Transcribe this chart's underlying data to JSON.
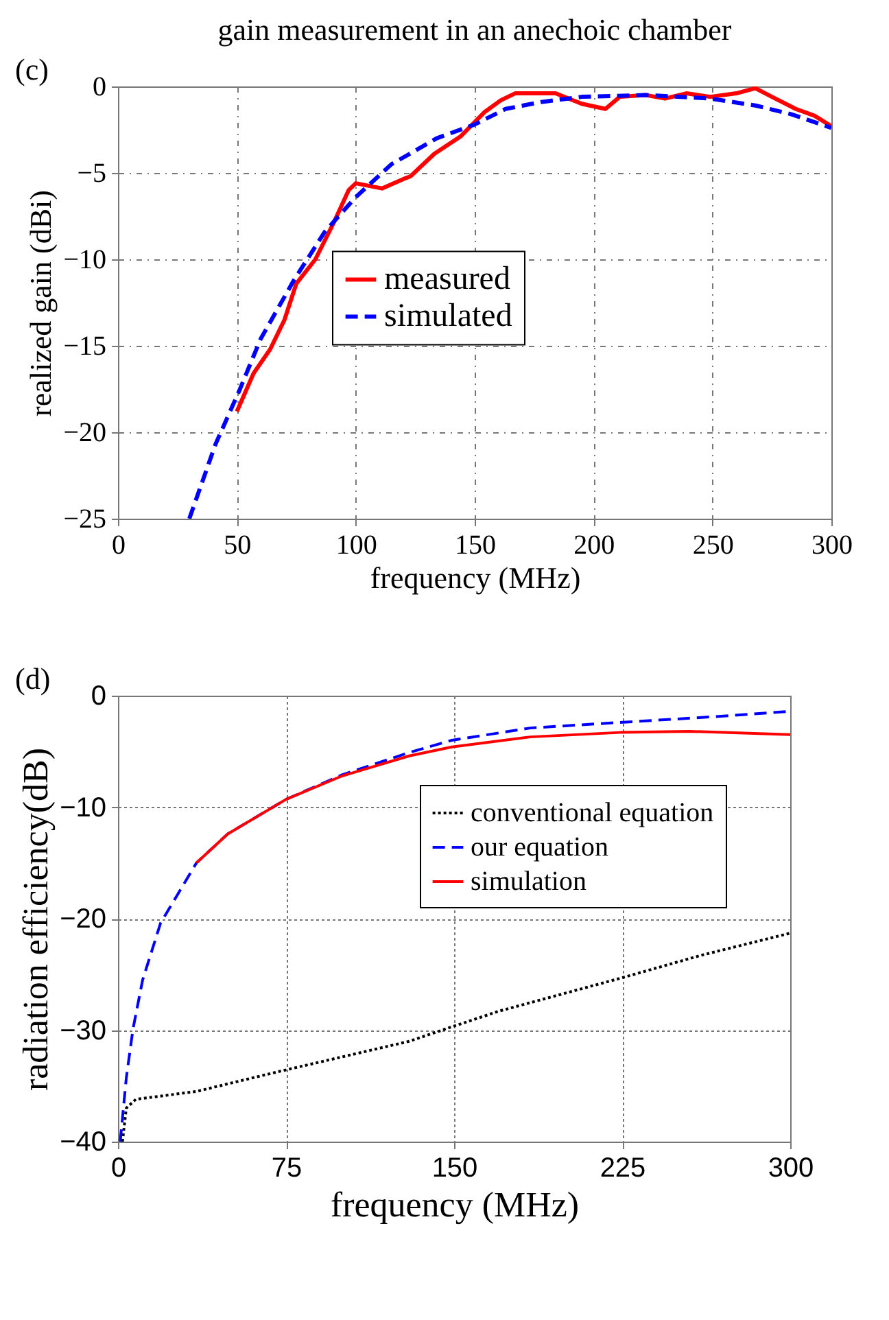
{
  "chart_data": [
    {
      "type": "line",
      "title": "gain measurement in an anechoic chamber",
      "xlabel": "frequency (MHz)",
      "ylabel": "realized gain (dBi)",
      "annotations": [
        "(c)"
      ],
      "xlim": [
        0,
        300
      ],
      "xticks": [
        0,
        50,
        100,
        150,
        200,
        250,
        300
      ],
      "ylim": [
        -25,
        0
      ],
      "yticks": [
        -25,
        -20,
        -15,
        -10,
        -5,
        0
      ],
      "grid": true,
      "legend": "center",
      "series": [
        {
          "name": "measured",
          "color": "#ff0000",
          "line_style": "solid",
          "x": [
            50,
            57,
            64,
            70,
            75,
            83,
            91,
            97,
            100,
            111,
            121,
            123,
            133,
            144,
            154,
            161,
            167,
            184,
            195,
            205,
            211,
            222,
            230,
            239,
            249,
            260,
            268,
            275,
            285,
            293,
            300
          ],
          "values": [
            -18.8,
            -16.6,
            -15.2,
            -13.5,
            -11.4,
            -10,
            -7.8,
            -6,
            -5.6,
            -5.9,
            -5.3,
            -5.2,
            -3.9,
            -2.9,
            -1.5,
            -0.8,
            -0.4,
            -0.4,
            -1,
            -1.3,
            -0.6,
            -0.5,
            -0.7,
            -0.4,
            -0.6,
            -0.4,
            -0.1,
            -0.6,
            -1.3,
            -1.7,
            -2.3
          ]
        },
        {
          "name": "simulated",
          "color": "#0000ff",
          "line_style": "dashed",
          "x": [
            30,
            41,
            51,
            60,
            74,
            87,
            100,
            115,
            134,
            150,
            163,
            178,
            195,
            222,
            249,
            268,
            283,
            300
          ],
          "values": [
            -25,
            -20.7,
            -17.6,
            -14.6,
            -11.2,
            -8.4,
            -6.4,
            -4.5,
            -3,
            -2.2,
            -1.3,
            -0.9,
            -0.6,
            -0.5,
            -0.7,
            -1.1,
            -1.6,
            -2.4
          ]
        }
      ]
    },
    {
      "type": "line",
      "xlabel": "frequency (MHz)",
      "ylabel": "radiation efficiency(dB)",
      "annotations": [
        "(d)"
      ],
      "xlim": [
        0,
        300
      ],
      "xticks": [
        0,
        75,
        150,
        225,
        300
      ],
      "ylim": [
        -40,
        0
      ],
      "yticks": [
        -40,
        -30,
        -20,
        -10,
        0
      ],
      "grid": true,
      "legend": "right",
      "series": [
        {
          "name": "conventional equation",
          "color": "#000000",
          "line_style": "dotted",
          "x": [
            2,
            3.7,
            8,
            35,
            70,
            100,
            130,
            149,
            170,
            225,
            260,
            300
          ],
          "values": [
            -40,
            -37,
            -36.2,
            -35.5,
            -33.8,
            -32.4,
            -31,
            -29.7,
            -28.3,
            -25.3,
            -23.3,
            -21.3
          ]
        },
        {
          "name": "our equation",
          "color": "#0000ff",
          "line_style": "dashed",
          "x": [
            1,
            3.7,
            6.7,
            11,
            19,
            35,
            49,
            75,
            100,
            130,
            149,
            184,
            224,
            265,
            300
          ],
          "values": [
            -40,
            -34.3,
            -29.9,
            -25.5,
            -20.4,
            -15,
            -12.4,
            -9.3,
            -7.1,
            -5.1,
            -4,
            -2.9,
            -2.4,
            -1.9,
            -1.4
          ]
        },
        {
          "name": "simulation",
          "color": "#ff0000",
          "line_style": "solid",
          "x": [
            35,
            49,
            75,
            100,
            130,
            149,
            184,
            224,
            255,
            300
          ],
          "values": [
            -15,
            -12.4,
            -9.3,
            -7.2,
            -5.4,
            -4.6,
            -3.7,
            -3.3,
            -3.2,
            -3.5
          ]
        }
      ]
    }
  ]
}
